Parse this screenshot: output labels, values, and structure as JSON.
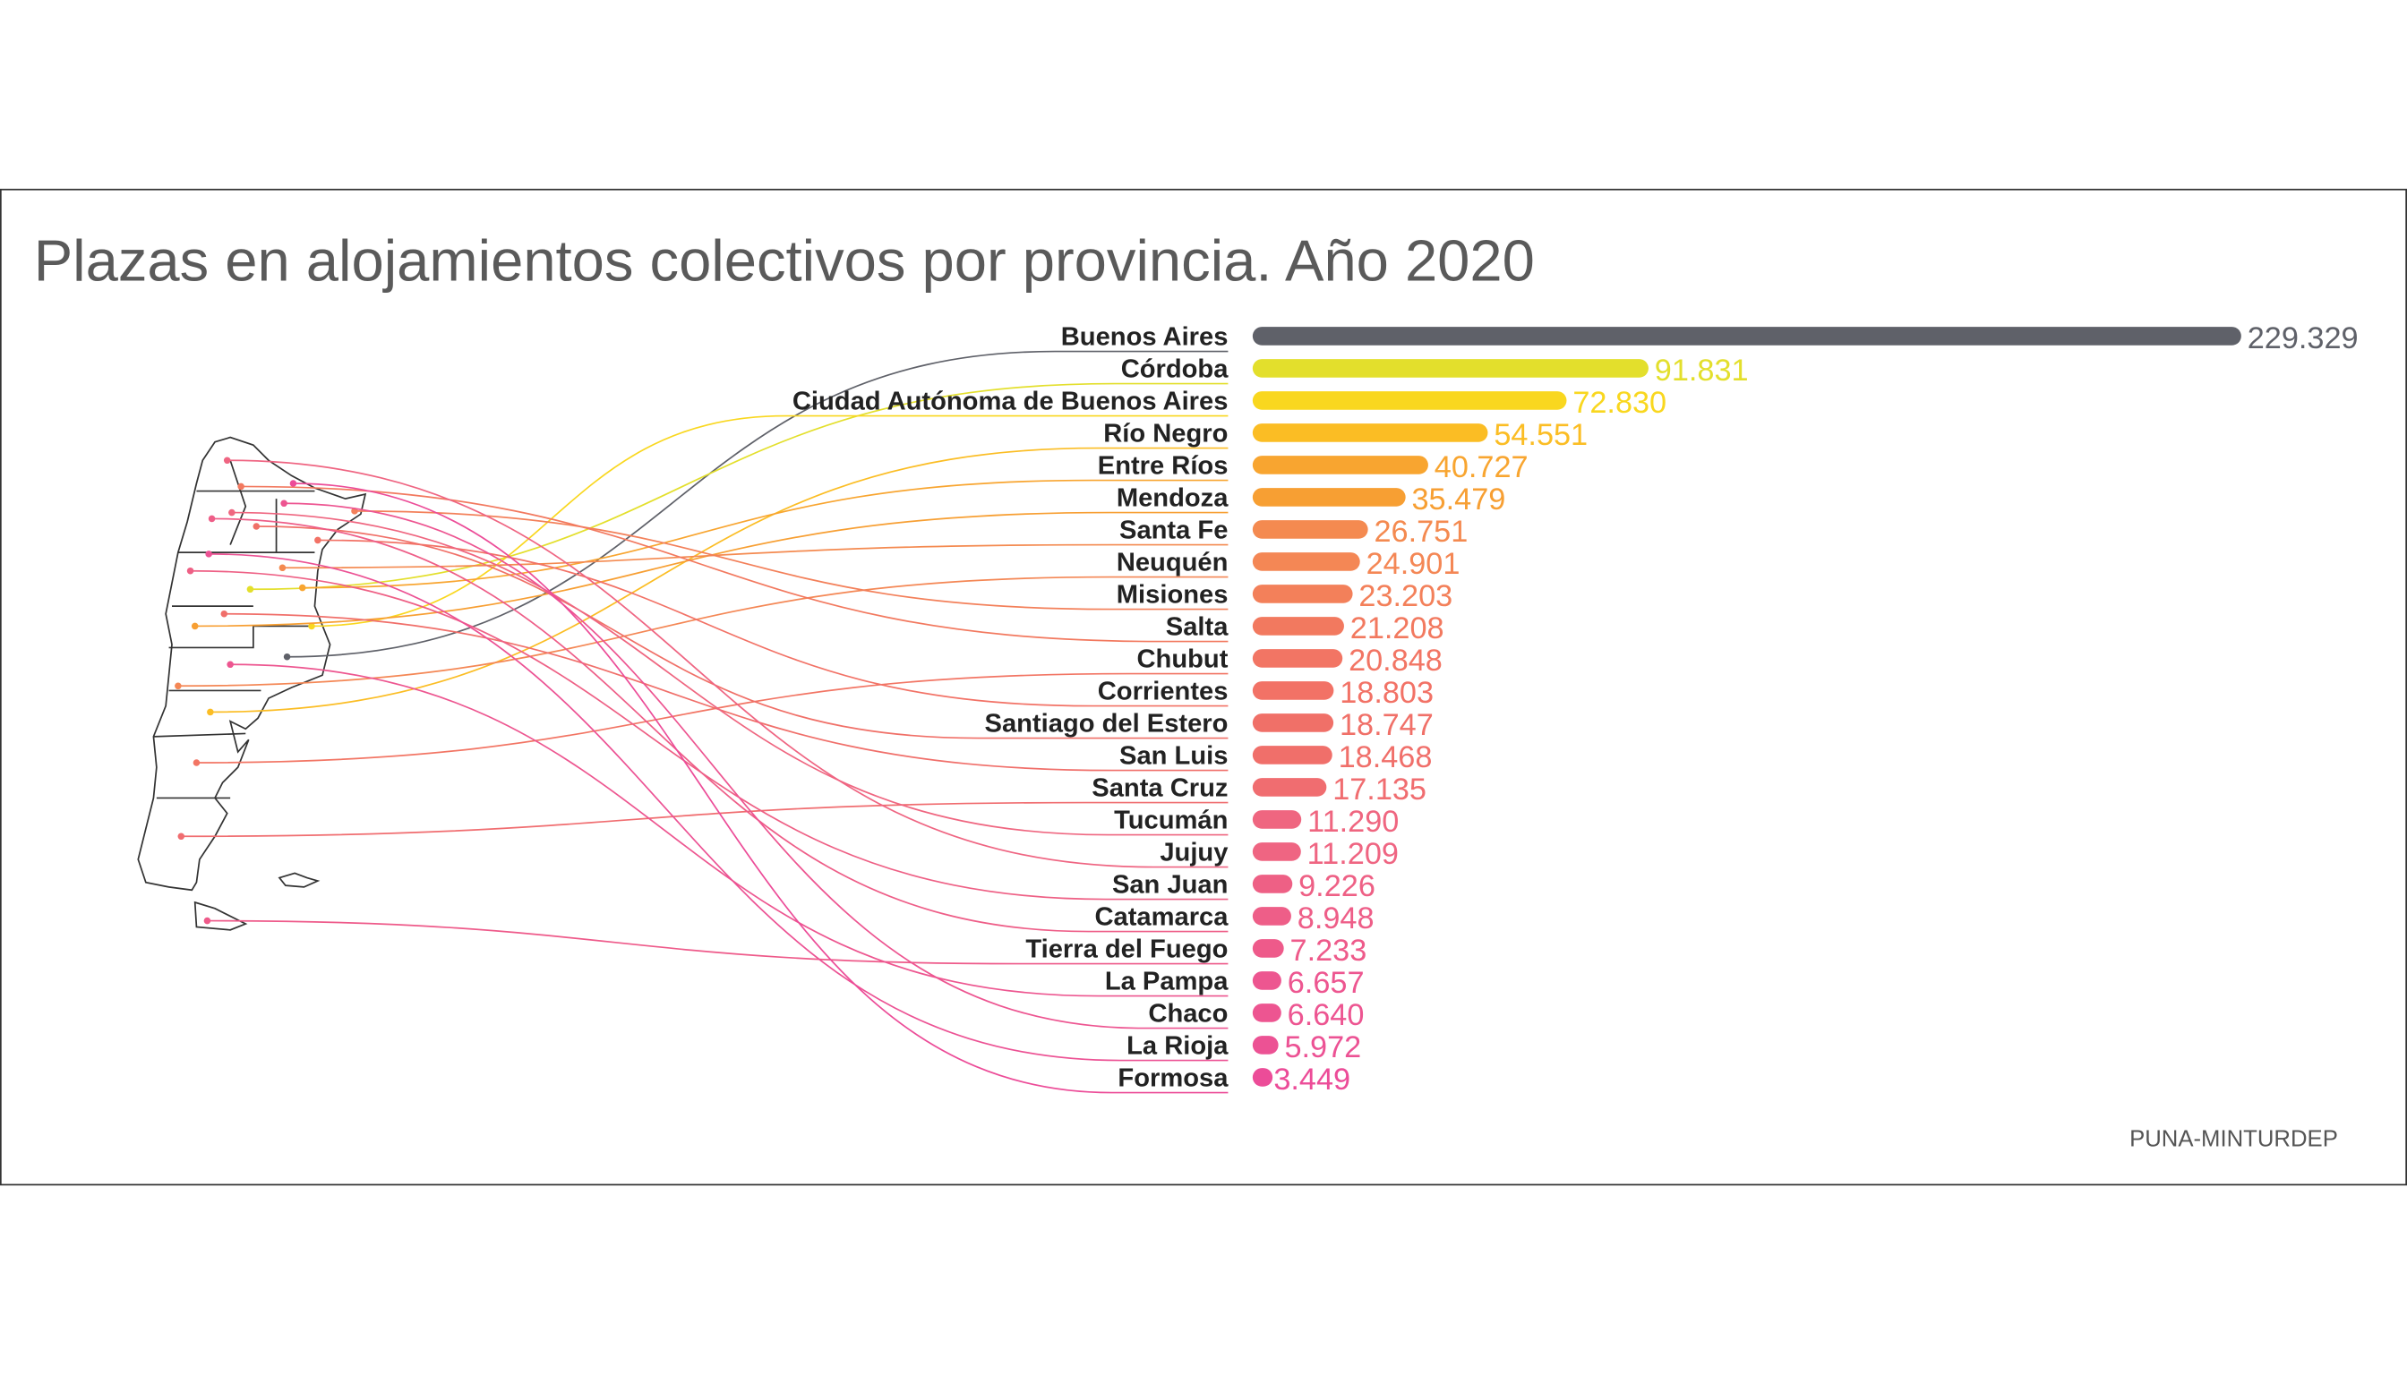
{
  "chart_data": {
    "type": "bar",
    "title": "Plazas en alojamientos colectivos por provincia. Año 2020",
    "source": "PUNA-MINTURDEP",
    "xlabel": "",
    "ylabel": "",
    "xlim": [
      0,
      229329
    ],
    "grid": false,
    "legend": "none",
    "categories": [
      "Buenos Aires",
      "Córdoba",
      "Ciudad Autónoma de Buenos Aires",
      "Río Negro",
      "Entre Ríos",
      "Mendoza",
      "Santa Fe",
      "Neuquén",
      "Misiones",
      "Salta",
      "Chubut",
      "Corrientes",
      "Santiago del Estero",
      "San Luis",
      "Santa Cruz",
      "Tucumán",
      "Jujuy",
      "San Juan",
      "Catamarca",
      "Tierra del Fuego",
      "La Pampa",
      "Chaco",
      "La Rioja",
      "Formosa"
    ],
    "values": [
      229329,
      91831,
      72830,
      54551,
      40727,
      35479,
      26751,
      24901,
      23203,
      21208,
      20848,
      18803,
      18747,
      18468,
      17135,
      11290,
      11209,
      9226,
      8948,
      7233,
      6657,
      6640,
      5972,
      3449
    ],
    "value_labels": [
      "229.329",
      "91.831",
      "72.830",
      "54.551",
      "40.727",
      "35.479",
      "26.751",
      "24.901",
      "23.203",
      "21.208",
      "20.848",
      "18.803",
      "18.747",
      "18.468",
      "17.135",
      "11.290",
      "11.209",
      "9.226",
      "8.948",
      "7.233",
      "6.657",
      "6.640",
      "5.972",
      "3.449"
    ],
    "colors": [
      "#5f6169",
      "#e3df2c",
      "#f9d71f",
      "#fbbd24",
      "#f8a530",
      "#f79f33",
      "#f48a50",
      "#f48755",
      "#f3805a",
      "#f2795f",
      "#f27564",
      "#f27266",
      "#f07068",
      "#f06f6a",
      "#f06d70",
      "#ef6680",
      "#ef6582",
      "#ee6085",
      "#ee5e88",
      "#ee5a8a",
      "#ed5690",
      "#ed5591",
      "#ec5294",
      "#ec4c98"
    ]
  }
}
